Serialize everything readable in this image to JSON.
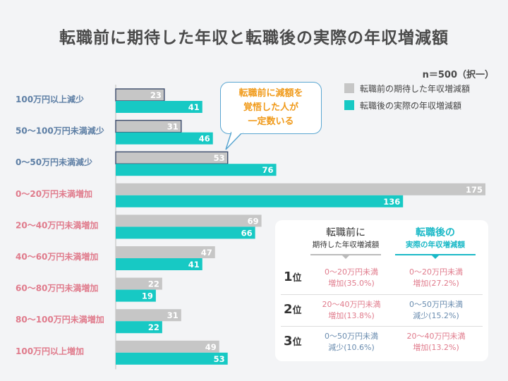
{
  "title": "転職前に期待した年収と転職後の実際の年収増減額",
  "sample": "n＝500（択一）",
  "colors": {
    "before": "#c6c6c6",
    "after": "#17c9c4",
    "decrease_label": "#5e7fa5",
    "increase_label": "#e07b8c",
    "callout_text": "#f09a1a"
  },
  "legend": {
    "before": "転職前の期待した年収増減額",
    "after": "転職後の実際の年収増減額"
  },
  "callout": {
    "line1": "転職前に減額を",
    "line2": "覚悟した人が",
    "line3": "一定数いる"
  },
  "chart_data": {
    "type": "bar",
    "orientation": "horizontal",
    "categories": [
      "100万円以上減少",
      "50～100万円未満減少",
      "0～50万円未満減少",
      "0～20万円未満増加",
      "20～40万円未満増加",
      "40～60万円未満増加",
      "60～80万円未満増加",
      "80～100万円未満増加",
      "100万円以上増加"
    ],
    "category_kind": [
      "decrease",
      "decrease",
      "decrease",
      "increase",
      "increase",
      "increase",
      "increase",
      "increase",
      "increase"
    ],
    "series": [
      {
        "name": "転職前の期待した年収増減額",
        "values": [
          23,
          31,
          53,
          175,
          69,
          47,
          22,
          31,
          49
        ]
      },
      {
        "name": "転職後の実際の年収増減額",
        "values": [
          41,
          46,
          76,
          136,
          66,
          41,
          19,
          22,
          53
        ]
      }
    ],
    "xlim": [
      0,
      175
    ],
    "legend_position": "top-right"
  },
  "ranking": {
    "col1_line1": "転職前に",
    "col1_line2": "期待した年収増減額",
    "col2_line1": "転職後の",
    "col2_line2": "実際の年収増減額",
    "rank_suffix": "位",
    "rows": [
      {
        "rank": "1",
        "before_a": "0～20万円未満",
        "before_b": "増加(35.0%)",
        "after_a": "0～20万円未満",
        "after_b": "増加(27.2%)"
      },
      {
        "rank": "2",
        "before_a": "20～40万円未満",
        "before_b": "増加(13.8%)",
        "after_a": "0～50万円未満",
        "after_b": "減少(15.2%)"
      },
      {
        "rank": "3",
        "before_a": "0～50万円未満",
        "before_b": "減少(10.6%)",
        "after_a": "20～40万円未満",
        "after_b": "増加(13.2%)"
      }
    ]
  }
}
